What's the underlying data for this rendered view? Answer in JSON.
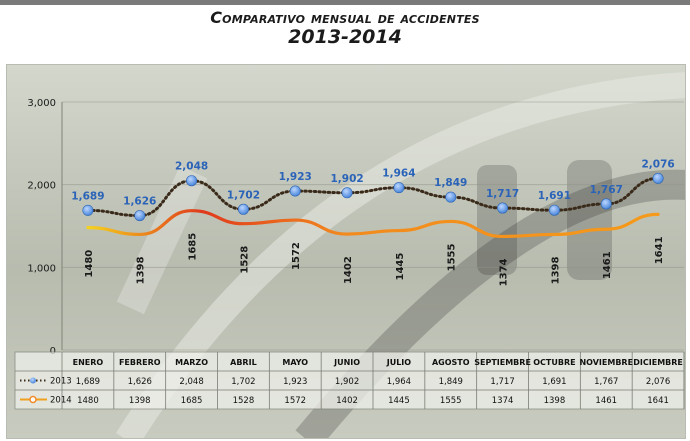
{
  "title_line1": "Comparativo mensual de accidentes",
  "title_line2": "2013-2014",
  "chart_data": {
    "type": "line",
    "title": "Comparativo mensual de accidentes 2013-2014",
    "categories": [
      "ENERO",
      "FEBRERO",
      "MARZO",
      "ABRIL",
      "MAYO",
      "JUNIO",
      "JULIO",
      "AGOSTO",
      "SEPTIEMBRE",
      "OCTUBRE",
      "NOVIEMBRE",
      "DICIEMBRE"
    ],
    "ylim": [
      0,
      3000
    ],
    "yticks": [
      0,
      1000,
      2000,
      3000
    ],
    "ytick_labels": [
      "0",
      "1,000",
      "2,000",
      "3,000"
    ],
    "grid": true,
    "series": [
      {
        "name": "2013",
        "values": [
          1689,
          1626,
          2048,
          1702,
          1923,
          1902,
          1964,
          1849,
          1717,
          1691,
          1767,
          2076
        ],
        "labels": [
          "1,689",
          "1,626",
          "2,048",
          "1,702",
          "1,923",
          "1,902",
          "1,964",
          "1,849",
          "1,717",
          "1,691",
          "1,767",
          "2,076"
        ],
        "color": "#3a2a1a",
        "marker_color": "#6a9be0"
      },
      {
        "name": "2014",
        "values": [
          1480,
          1398,
          1685,
          1528,
          1572,
          1402,
          1445,
          1555,
          1374,
          1398,
          1461,
          1641
        ],
        "labels": [
          "1480",
          "1398",
          "1685",
          "1528",
          "1572",
          "1402",
          "1445",
          "1555",
          "1374",
          "1398",
          "1461",
          "1641"
        ],
        "color": "#f0a020",
        "marker_color": "#f28a2a"
      }
    ],
    "legend_placement": "table-left"
  }
}
